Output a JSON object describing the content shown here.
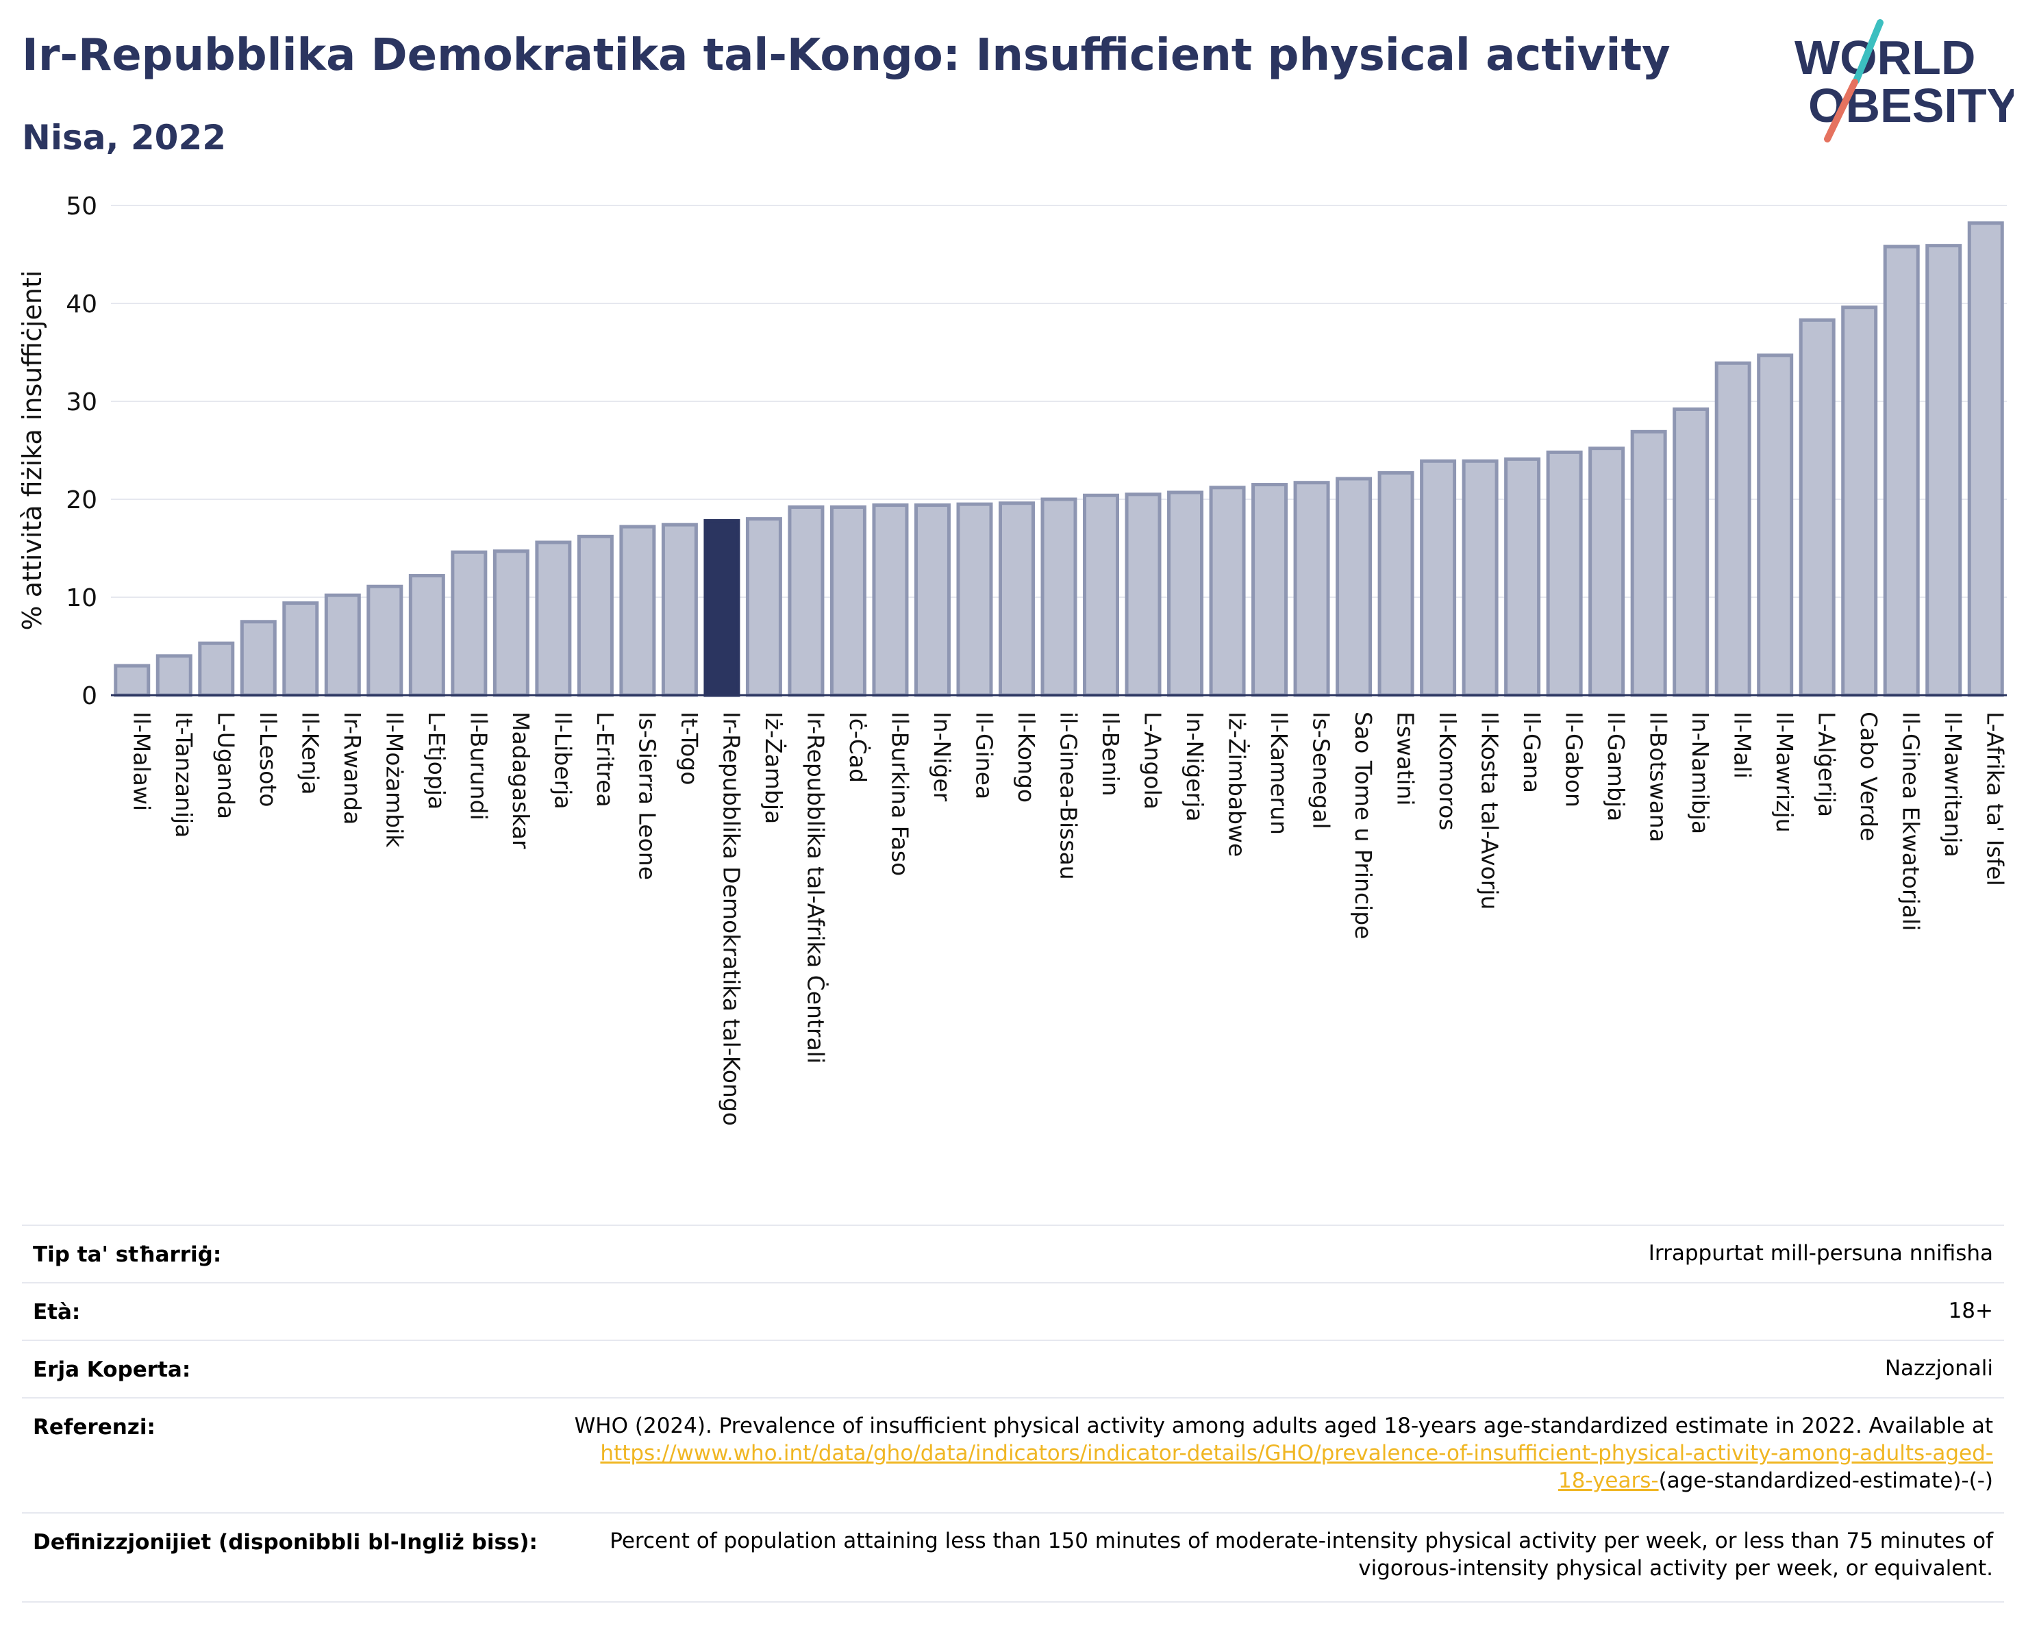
{
  "header": {
    "title": "Ir-Repubblika Demokratika tal-Kongo: Insufficient physical activity",
    "subtitle": "Nisa, 2022"
  },
  "logo": {
    "line1": "WORLD",
    "line2": "OBESITY"
  },
  "colors": {
    "highlight_bar": "#2b3560",
    "bar_fill": "#bcc1d2",
    "bar_stroke": "#8e96b2",
    "title": "#2b3560",
    "link": "#f0b623",
    "logo_teal": "#3cbfc0",
    "logo_coral": "#e5725f"
  },
  "chart_data": {
    "type": "bar",
    "ylabel": "% attività fiżika insuffiċjenti",
    "ylim": [
      0,
      50
    ],
    "yticks": [
      0,
      10,
      20,
      30,
      40,
      50
    ],
    "grid": true,
    "highlight": "Ir-Repubblika Demokratika tal-Kongo",
    "categories": [
      "Il-Malawi",
      "It-Tanzanija",
      "L-Uganda",
      "Il-Lesoto",
      "Il-Kenja",
      "Ir-Rwanda",
      "Il-Możambik",
      "L-Etjopja",
      "Il-Burundi",
      "Madagaskar",
      "Il-Liberja",
      "L-Eritrea",
      "Is-Sierra Leone",
      "It-Togo",
      "Ir-Repubblika Demokratika tal-Kongo",
      "Iż-Żambja",
      "Ir-Repubblika tal-Afrika Ċentrali",
      "Iċ-Ċad",
      "Il-Burkina Faso",
      "In-Niġer",
      "Il-Ginea",
      "Il-Kongo",
      "il-Ginea-Bissau",
      "Il-Benin",
      "L-Angola",
      "In-Niġerja",
      "Iż-Żimbabwe",
      "Il-Kamerun",
      "Is-Senegal",
      "Sao Tome u Principe",
      "Eswatini",
      "Il-Komoros",
      "Il-Kosta tal-Avorju",
      "Il-Gana",
      "Il-Gabon",
      "Il-Gambja",
      "Il-Botswana",
      "In-Namibja",
      "Il-Mali",
      "Il-Mawrizju",
      "L-Alġerija",
      "Cabo Verde",
      "Il-Ginea Ekwatorjali",
      "Il-Mawritanja",
      "L-Afrika ta' Isfel"
    ],
    "values": [
      3.0,
      4.0,
      5.3,
      7.5,
      9.4,
      10.2,
      11.1,
      12.2,
      14.6,
      14.7,
      15.6,
      16.2,
      17.2,
      17.4,
      17.8,
      18.0,
      19.2,
      19.2,
      19.4,
      19.4,
      19.5,
      19.6,
      20.0,
      20.4,
      20.5,
      20.7,
      21.2,
      21.5,
      21.7,
      22.1,
      22.7,
      23.9,
      23.9,
      24.1,
      24.8,
      25.2,
      26.9,
      29.2,
      33.9,
      34.7,
      38.3,
      39.6,
      45.8,
      45.9,
      48.2
    ]
  },
  "metadata": [
    {
      "key": "Tip ta' stħarriġ:",
      "value": "Irrappurtat mill-persuna nnifisha"
    },
    {
      "key": "Età:",
      "value": "18+"
    },
    {
      "key": "Erja Koperta:",
      "value": "Nazzjonali"
    },
    {
      "key": "Referenzi:",
      "value_line1": "WHO (2024). Prevalence of insufficient physical activity among adults aged 18-years age-standardized estimate in 2022. Available at",
      "link_line1": "https://www.who.int/data/gho/data/indicators/indicator-details/GHO/prevalence-of-insufficient-physical-activity-among-adults-aged-",
      "link_line2": "18-years-",
      "value_tail": "(age-standardized-estimate)-(-)"
    },
    {
      "key": "Definizzjonijiet (disponibbli bl-Ingliż biss):",
      "value_line1": "Percent of population attaining less than 150 minutes of moderate-intensity physical activity per week, or less than 75 minutes of",
      "value_line2": "vigorous-intensity physical activity per week, or equivalent."
    }
  ]
}
